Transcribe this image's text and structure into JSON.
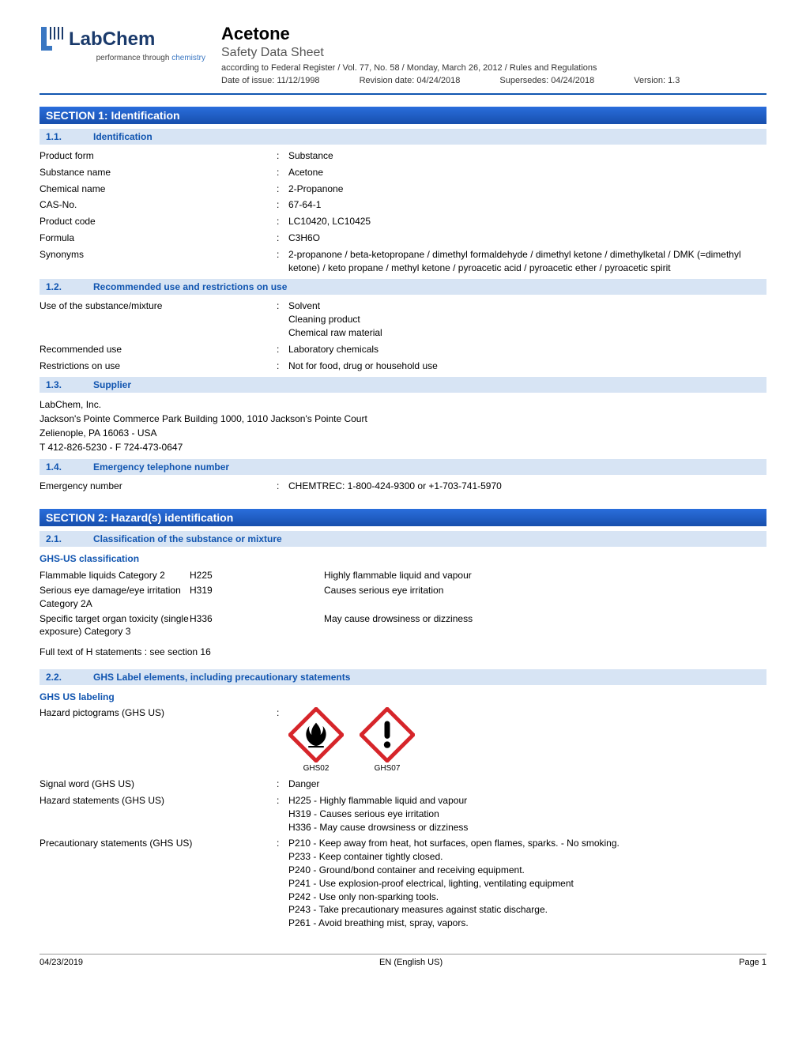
{
  "logo": {
    "brand": "LabChem",
    "tagline_pre": "performance through ",
    "tagline_chem": "chemistry"
  },
  "header": {
    "title": "Acetone",
    "subtitle": "Safety Data Sheet",
    "regulation": "according to Federal Register / Vol. 77, No. 58 / Monday, March 26, 2012 / Rules and Regulations",
    "date_of_issue": "Date of issue: 11/12/1998",
    "revision_date": "Revision date: 04/24/2018",
    "supersedes": "Supersedes: 04/24/2018",
    "version": "Version: 1.3"
  },
  "colors": {
    "section_bar_top": "#2a6edc",
    "section_bar_bottom": "#174fad",
    "subsection_bg": "#d7e4f4",
    "subsection_text": "#1155b0",
    "pictogram_border": "#d6252a",
    "logo_navy": "#1a3a6b",
    "logo_blue": "#3a77c2"
  },
  "section1": {
    "title": "SECTION 1: Identification",
    "s11": {
      "num": "1.1.",
      "title": "Identification"
    },
    "kv11": [
      {
        "k": "Product form",
        "v": "Substance"
      },
      {
        "k": "Substance name",
        "v": "Acetone"
      },
      {
        "k": "Chemical name",
        "v": "2-Propanone"
      },
      {
        "k": "CAS-No.",
        "v": "67-64-1"
      },
      {
        "k": "Product code",
        "v": "LC10420, LC10425"
      },
      {
        "k": "Formula",
        "v": "C3H6O"
      },
      {
        "k": "Synonyms",
        "v": "2-propanone / beta-ketopropane / dimethyl formaldehyde / dimethyl ketone / dimethylketal / DMK (=dimethyl ketone) / keto propane / methyl ketone / pyroacetic acid / pyroacetic ether / pyroacetic spirit"
      }
    ],
    "s12": {
      "num": "1.2.",
      "title": "Recommended use and restrictions on use"
    },
    "kv12": [
      {
        "k": "Use of the substance/mixture",
        "v": "Solvent\nCleaning product\nChemical raw material"
      },
      {
        "k": "Recommended use",
        "v": "Laboratory chemicals"
      },
      {
        "k": "Restrictions on use",
        "v": "Not for food, drug or household use"
      }
    ],
    "s13": {
      "num": "1.3.",
      "title": "Supplier"
    },
    "supplier_lines": "LabChem, Inc.\nJackson's Pointe Commerce Park Building 1000, 1010 Jackson's Pointe Court\nZelienople, PA 16063 - USA\nT 412-826-5230 - F 724-473-0647",
    "s14": {
      "num": "1.4.",
      "title": "Emergency telephone number"
    },
    "kv14": [
      {
        "k": "Emergency number",
        "v": "CHEMTREC: 1-800-424-9300 or +1-703-741-5970"
      }
    ]
  },
  "section2": {
    "title": "SECTION 2: Hazard(s) identification",
    "s21": {
      "num": "2.1.",
      "title": "Classification of the substance or mixture"
    },
    "ghs_class_hdr": "GHS-US classification",
    "ghs_rows": [
      {
        "c1": "Flammable liquids Category 2",
        "c2": "H225",
        "c3": "Highly flammable liquid and vapour"
      },
      {
        "c1": "Serious eye damage/eye irritation Category 2A",
        "c2": "H319",
        "c3": "Causes serious eye irritation"
      },
      {
        "c1": "Specific target organ toxicity (single exposure) Category 3",
        "c2": "H336",
        "c3": "May cause drowsiness or dizziness"
      }
    ],
    "full_text_note": "Full text of H statements : see section 16",
    "s22": {
      "num": "2.2.",
      "title": "GHS Label elements, including precautionary statements"
    },
    "ghs_label_hdr": "GHS US labeling",
    "pictogram_key": "Hazard pictograms (GHS US)",
    "pictograms": [
      {
        "id": "GHS02",
        "type": "flame"
      },
      {
        "id": "GHS07",
        "type": "exclaim"
      }
    ],
    "kv22": [
      {
        "k": "Signal word (GHS US)",
        "v": "Danger"
      },
      {
        "k": "Hazard statements (GHS US)",
        "v": "H225 - Highly flammable liquid and vapour\nH319 - Causes serious eye irritation\nH336 - May cause drowsiness or dizziness"
      },
      {
        "k": "Precautionary statements (GHS US)",
        "v": "P210 - Keep away from heat, hot surfaces, open flames, sparks. - No smoking.\nP233 - Keep container tightly closed.\nP240 - Ground/bond container and receiving equipment.\nP241 - Use explosion-proof electrical, lighting, ventilating equipment\nP242 - Use only non-sparking tools.\nP243 - Take precautionary measures against static discharge.\nP261 - Avoid breathing mist, spray, vapors."
      }
    ]
  },
  "footer": {
    "date": "04/23/2019",
    "lang": "EN (English US)",
    "page": "Page 1"
  }
}
